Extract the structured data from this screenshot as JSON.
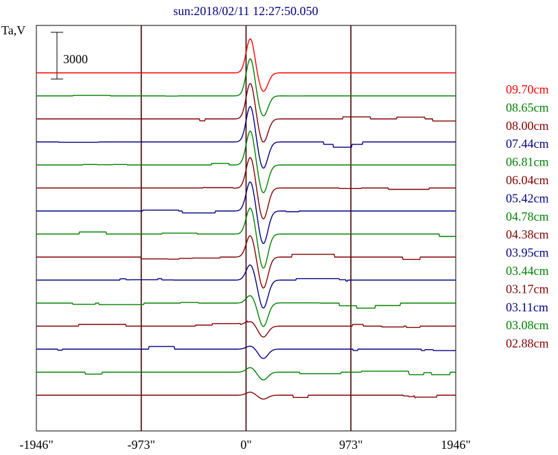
{
  "chart_data": {
    "type": "line",
    "title": "sun:2018/02/11 12:27:50.050",
    "ylabel": "Ta,V",
    "scale_bar_label": "3000",
    "scale_bar_value": 3000,
    "xlim": [
      -1946,
      1946
    ],
    "x_ticks": [
      -1946,
      -973,
      0,
      973,
      1946
    ],
    "x_tick_labels": [
      "-1946\"",
      "-973\"",
      "0\"",
      "973\"",
      "1946\""
    ],
    "grid": "vertical lines at -973, 0, 973",
    "legend_placement": "right",
    "series": [
      {
        "name": "09.70cm",
        "color": "#ff0000",
        "offset": 0,
        "peak": 2200,
        "trough": -1200,
        "noise": 0.0
      },
      {
        "name": "08.65cm",
        "color": "#008000",
        "offset": 1,
        "peak": 2400,
        "trough": -1300,
        "noise": 0.4
      },
      {
        "name": "08.00cm",
        "color": "#800000",
        "offset": 2,
        "peak": 2300,
        "trough": -1500,
        "noise": 0.5
      },
      {
        "name": "07.44cm",
        "color": "#000080",
        "offset": 3,
        "peak": 2300,
        "trough": -1700,
        "noise": 0.6
      },
      {
        "name": "06.81cm",
        "color": "#008000",
        "offset": 4,
        "peak": 2200,
        "trough": -1800,
        "noise": 0.5
      },
      {
        "name": "06.04cm",
        "color": "#800000",
        "offset": 5,
        "peak": 2000,
        "trough": -2000,
        "noise": 0.4
      },
      {
        "name": "05.42cm",
        "color": "#000080",
        "offset": 6,
        "peak": 1900,
        "trough": -2100,
        "noise": 0.4
      },
      {
        "name": "04.78cm",
        "color": "#008000",
        "offset": 7,
        "peak": 1700,
        "trough": -2200,
        "noise": 0.4
      },
      {
        "name": "04.38cm",
        "color": "#800000",
        "offset": 8,
        "peak": 1400,
        "trough": -2000,
        "noise": 0.6
      },
      {
        "name": "03.95cm",
        "color": "#000080",
        "offset": 9,
        "peak": 1000,
        "trough": -1800,
        "noise": 0.5
      },
      {
        "name": "03.44cm",
        "color": "#008000",
        "offset": 10,
        "peak": 500,
        "trough": -1500,
        "noise": 0.6
      },
      {
        "name": "03.17cm",
        "color": "#800000",
        "offset": 11,
        "peak": 300,
        "trough": -700,
        "noise": 0.6
      },
      {
        "name": "03.11cm",
        "color": "#000080",
        "offset": 12,
        "peak": 200,
        "trough": -600,
        "noise": 0.5
      },
      {
        "name": "03.08cm",
        "color": "#008000",
        "offset": 13,
        "peak": 300,
        "trough": -500,
        "noise": 0.6
      },
      {
        "name": "02.88cm",
        "color": "#800000",
        "offset": 14,
        "peak": 200,
        "trough": -250,
        "noise": 0.6
      }
    ]
  },
  "colors": {
    "title": "#000080",
    "frame": "#000000",
    "grid": "#400000"
  }
}
